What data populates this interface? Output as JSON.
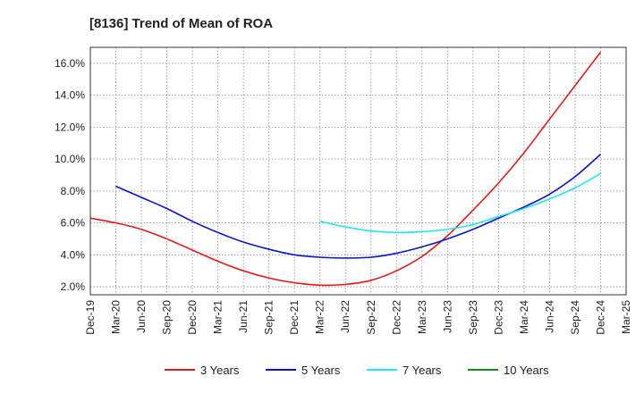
{
  "chart_data": {
    "type": "line",
    "title": "[8136]  Trend of Mean of ROA",
    "xlabel": "",
    "ylabel": "",
    "x": [
      "Dec-19",
      "Mar-20",
      "Jun-20",
      "Sep-20",
      "Dec-20",
      "Mar-21",
      "Jun-21",
      "Sep-21",
      "Dec-21",
      "Mar-22",
      "Jun-22",
      "Sep-22",
      "Dec-22",
      "Mar-23",
      "Jun-23",
      "Sep-23",
      "Dec-23",
      "Mar-24",
      "Jun-24",
      "Sep-24",
      "Dec-24",
      "Mar-25"
    ],
    "ylim": [
      1.5,
      17.0
    ],
    "yticks": [
      2.0,
      4.0,
      6.0,
      8.0,
      10.0,
      12.0,
      14.0,
      16.0
    ],
    "ytick_format": "percent_1dp",
    "grid": true,
    "legend_position": "bottom",
    "series": [
      {
        "name": "3 Years",
        "color": "#e31a1c",
        "values": [
          6.3,
          6.0,
          5.6,
          5.0,
          4.3,
          3.6,
          3.0,
          2.55,
          2.25,
          2.1,
          2.15,
          2.4,
          3.0,
          3.9,
          5.2,
          6.8,
          8.5,
          10.4,
          12.5,
          14.6,
          16.7,
          null
        ]
      },
      {
        "name": "5 Years",
        "color": "#0a14c8",
        "values": [
          null,
          8.3,
          7.6,
          6.9,
          6.1,
          5.4,
          4.8,
          4.35,
          4.0,
          3.85,
          3.8,
          3.85,
          4.1,
          4.5,
          5.0,
          5.6,
          6.3,
          7.0,
          7.8,
          8.9,
          10.3,
          null
        ]
      },
      {
        "name": "7 Years",
        "color": "#22e6f0",
        "values": [
          null,
          null,
          null,
          null,
          null,
          null,
          null,
          null,
          null,
          6.1,
          5.75,
          5.5,
          5.4,
          5.45,
          5.6,
          5.9,
          6.4,
          6.9,
          7.5,
          8.2,
          9.1,
          null
        ]
      },
      {
        "name": "10 Years",
        "color": "#1a8a1a",
        "values": [
          null,
          null,
          null,
          null,
          null,
          null,
          null,
          null,
          null,
          null,
          null,
          null,
          null,
          null,
          null,
          null,
          null,
          null,
          null,
          null,
          null,
          null
        ]
      }
    ]
  }
}
